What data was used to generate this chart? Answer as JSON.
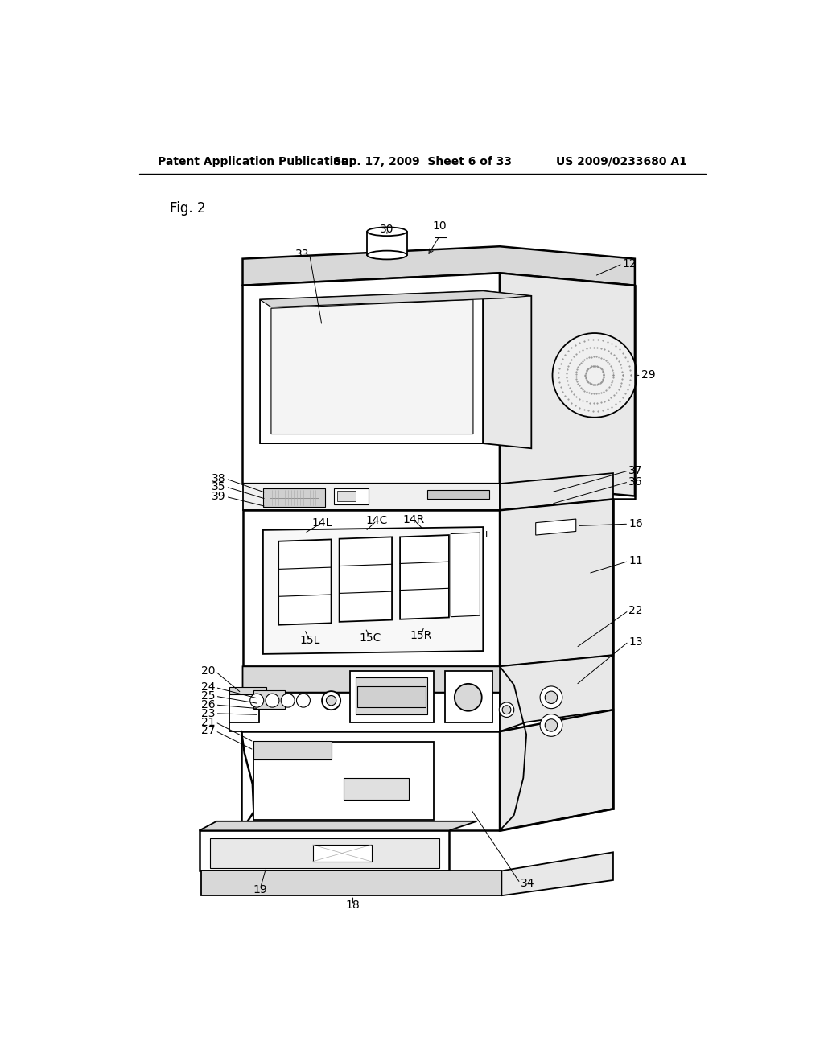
{
  "background_color": "#ffffff",
  "line_color": "#000000",
  "title_left": "Patent Application Publication",
  "title_center": "Sep. 17, 2009  Sheet 6 of 33",
  "title_right": "US 2009/0233680 A1",
  "fig_label": "Fig. 2",
  "lw_thick": 1.8,
  "lw_main": 1.3,
  "lw_thin": 0.8,
  "lw_annotation": 0.7
}
